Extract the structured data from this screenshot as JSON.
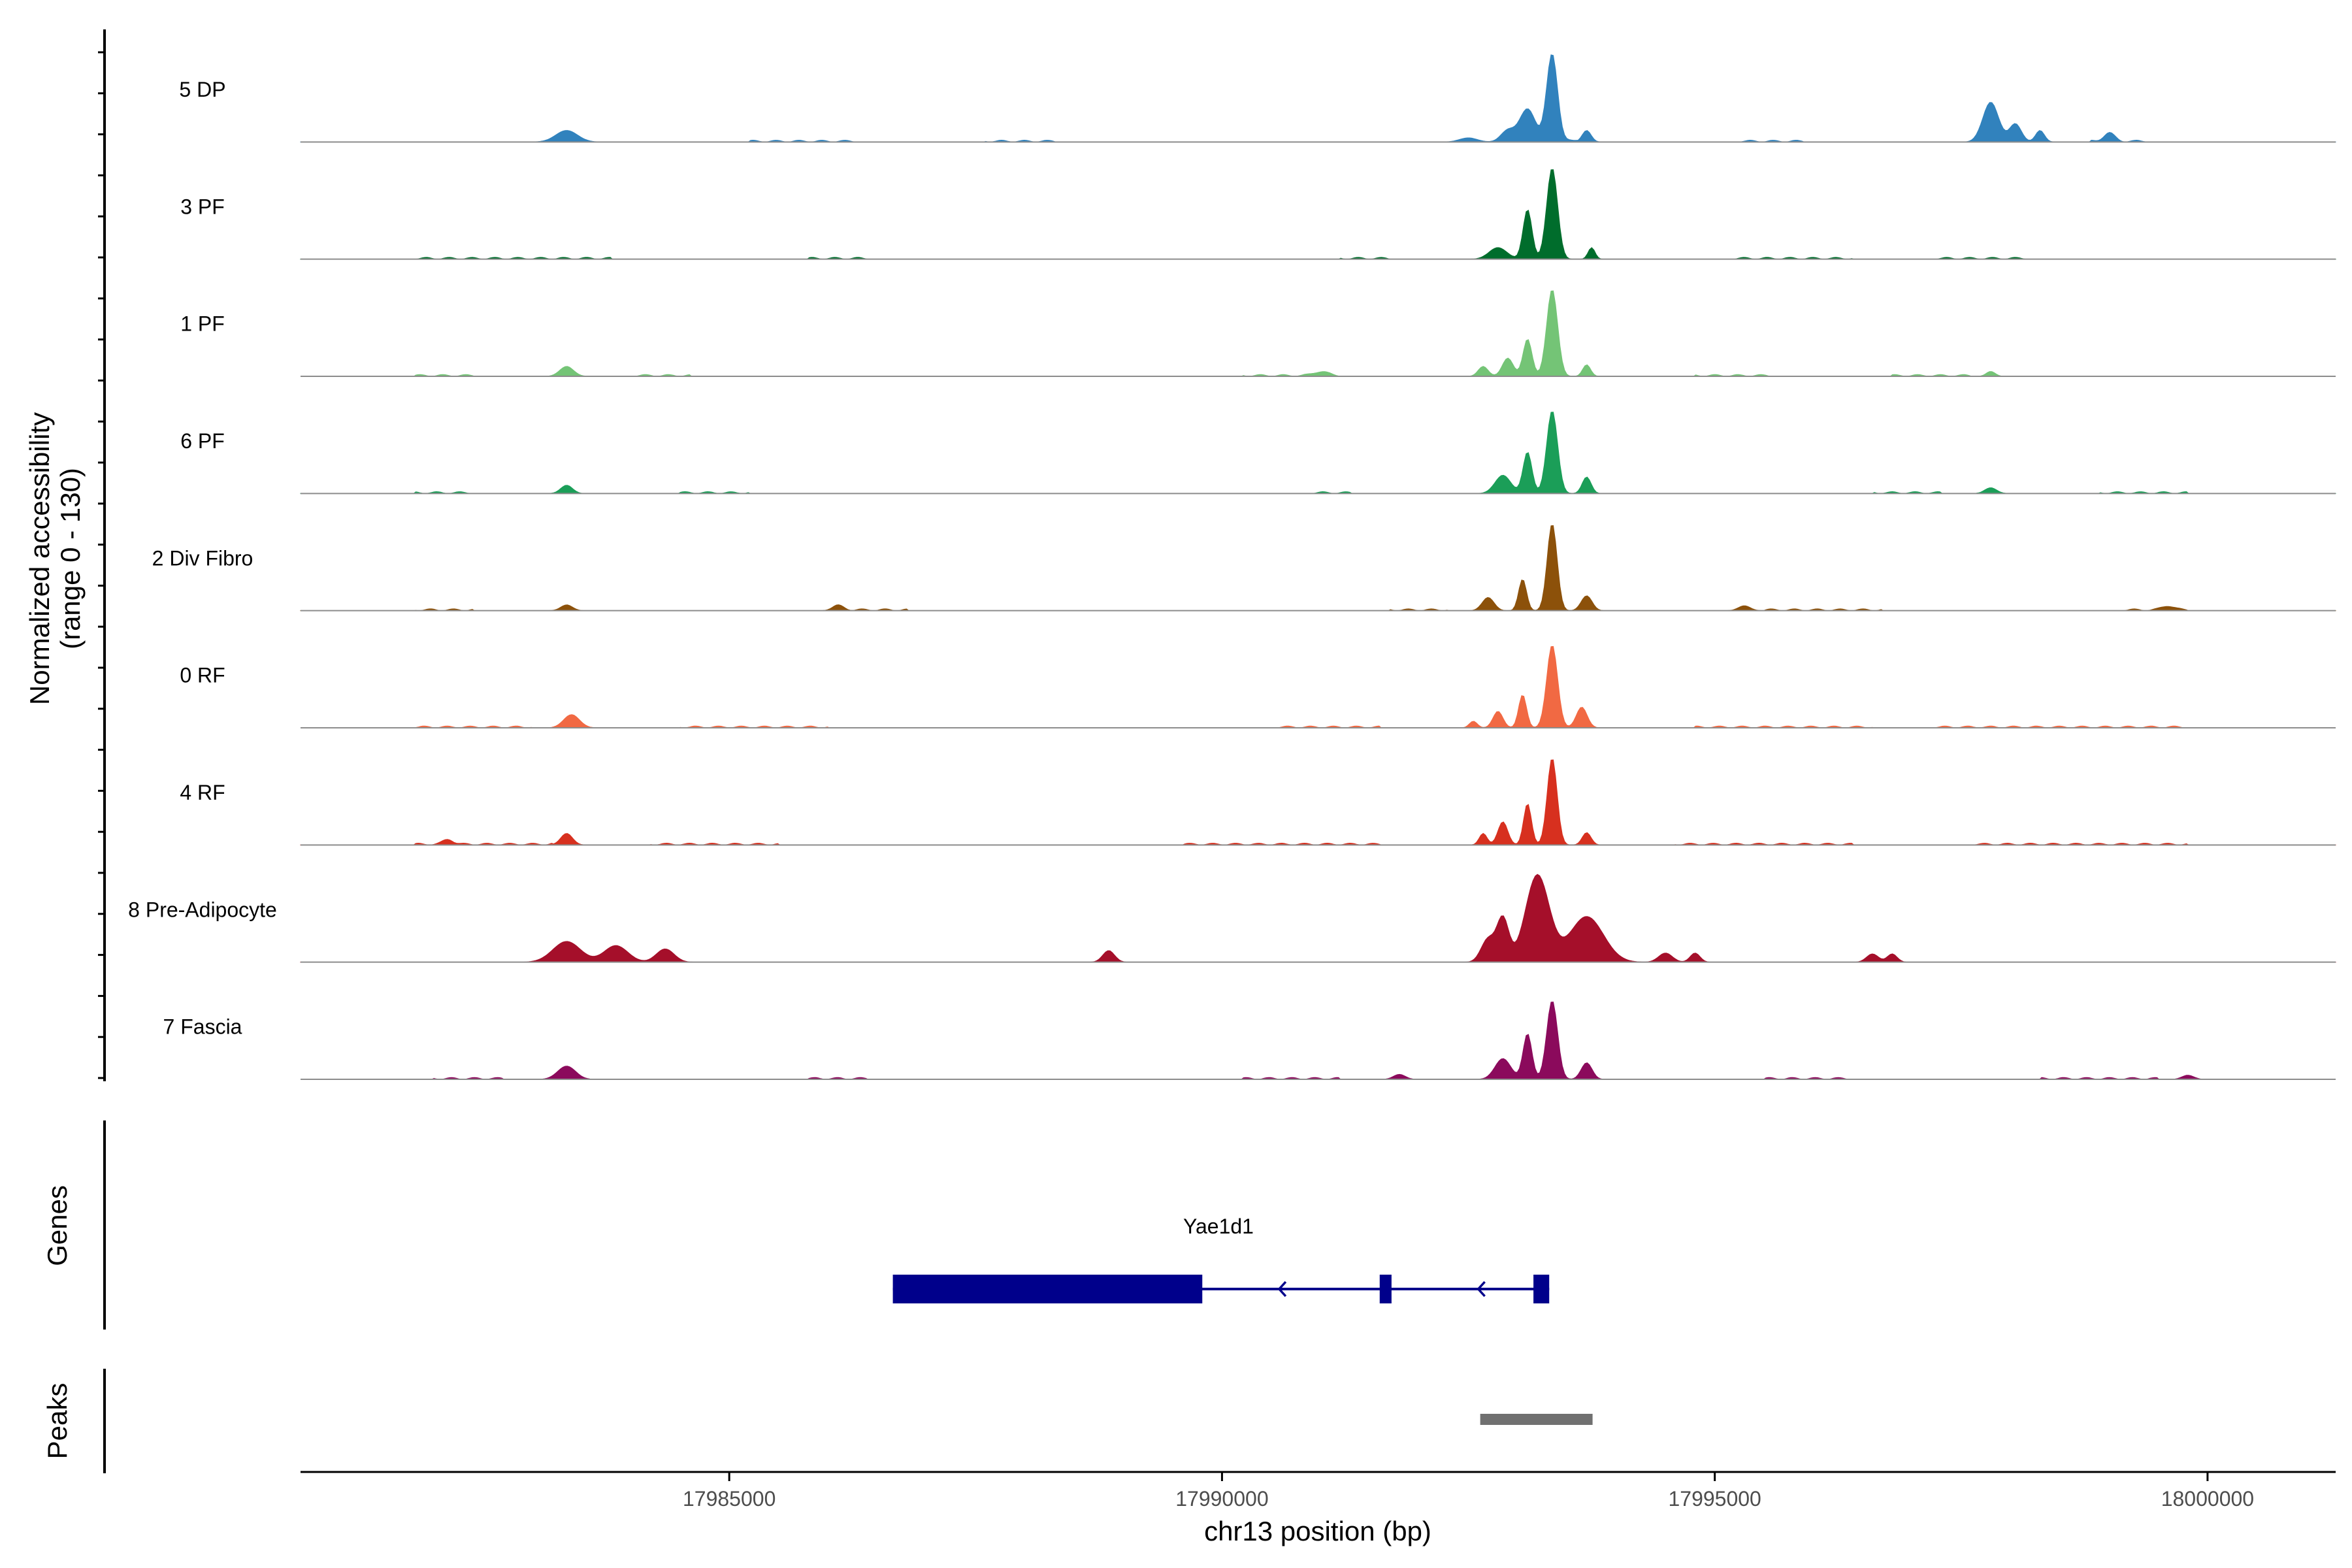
{
  "chart_data": {
    "type": "area",
    "y_axis": {
      "label_line1": "Normalized accessibility",
      "label_line2": "(range 0 - 130)",
      "ylim": [
        0,
        130
      ]
    },
    "x_axis": {
      "label": "chr13 position (bp)",
      "xlim": [
        17980650,
        18001300
      ],
      "ticks": [
        17985000,
        17990000,
        17995000,
        18000000
      ],
      "tick_labels": [
        "17985000",
        "17990000",
        "17995000",
        "18000000"
      ]
    },
    "tracks": [
      {
        "name": "5 DP",
        "color": "#3182BD",
        "noise": [
          [
            17985200,
            17986300
          ],
          [
            17987600,
            17988300
          ],
          [
            17993200,
            17993600
          ],
          [
            17995200,
            17995900
          ],
          [
            17998800,
            17999400
          ]
        ],
        "peaks": [
          [
            17983350,
            110,
            14
          ],
          [
            17993350,
            55,
            105
          ],
          [
            17993100,
            80,
            40
          ],
          [
            17992900,
            70,
            14
          ],
          [
            17993700,
            45,
            14
          ],
          [
            17997800,
            80,
            48
          ],
          [
            17998050,
            60,
            22
          ],
          [
            17998300,
            45,
            14
          ],
          [
            17999000,
            55,
            10
          ],
          [
            17992500,
            90,
            5
          ]
        ]
      },
      {
        "name": "3 PF",
        "color": "#006D2C",
        "noise": [
          [
            17981800,
            17983800
          ],
          [
            17985800,
            17986400
          ],
          [
            17991200,
            17991700
          ],
          [
            17995200,
            17996400
          ],
          [
            17997200,
            17998200
          ]
        ],
        "peaks": [
          [
            17993350,
            55,
            110
          ],
          [
            17993100,
            45,
            60
          ],
          [
            17992800,
            90,
            14
          ],
          [
            17993750,
            35,
            14
          ]
        ]
      },
      {
        "name": "1 PF",
        "color": "#74C476",
        "noise": [
          [
            17981800,
            17982400
          ],
          [
            17984000,
            17984600
          ],
          [
            17990200,
            17991200
          ],
          [
            17994800,
            17995600
          ],
          [
            17996800,
            17997600
          ]
        ],
        "peaks": [
          [
            17983350,
            70,
            12
          ],
          [
            17993350,
            55,
            105
          ],
          [
            17993100,
            45,
            45
          ],
          [
            17992900,
            55,
            22
          ],
          [
            17992650,
            50,
            12
          ],
          [
            17993700,
            40,
            14
          ],
          [
            17991000,
            70,
            5
          ],
          [
            17997800,
            45,
            6
          ]
        ]
      },
      {
        "name": "6 PF",
        "color": "#1B9E58",
        "noise": [
          [
            17981800,
            17982400
          ],
          [
            17984500,
            17985200
          ],
          [
            17990900,
            17991300
          ],
          [
            17996600,
            17997300
          ],
          [
            17998900,
            17999800
          ]
        ],
        "peaks": [
          [
            17983350,
            60,
            10
          ],
          [
            17993350,
            55,
            100
          ],
          [
            17993100,
            45,
            50
          ],
          [
            17992850,
            80,
            22
          ],
          [
            17993700,
            45,
            20
          ],
          [
            17997800,
            60,
            7
          ]
        ]
      },
      {
        "name": "2 Div Fibro",
        "color": "#8C510A",
        "noise": [
          [
            17981800,
            17982400
          ],
          [
            17986000,
            17986800
          ],
          [
            17991700,
            17992300
          ],
          [
            17995500,
            17996700
          ],
          [
            17999100,
            17999800
          ]
        ],
        "peaks": [
          [
            17993350,
            50,
            105
          ],
          [
            17993050,
            40,
            38
          ],
          [
            17992700,
            60,
            16
          ],
          [
            17993700,
            55,
            18
          ],
          [
            17983350,
            60,
            7
          ],
          [
            17986100,
            60,
            5
          ],
          [
            17995300,
            60,
            6
          ],
          [
            17999600,
            60,
            5
          ]
        ]
      },
      {
        "name": "0 RF",
        "color": "#F16943",
        "noise": [
          [
            17981800,
            17983000
          ],
          [
            17984500,
            17986000
          ],
          [
            17990500,
            17991600
          ],
          [
            17994800,
            17996600
          ],
          [
            17997200,
            17999800
          ]
        ],
        "peaks": [
          [
            17983400,
            80,
            16
          ],
          [
            17993350,
            55,
            100
          ],
          [
            17993050,
            40,
            40
          ],
          [
            17992800,
            50,
            20
          ],
          [
            17993650,
            55,
            25
          ],
          [
            17992550,
            40,
            8
          ]
        ]
      },
      {
        "name": "4 RF",
        "color": "#D7301F",
        "noise": [
          [
            17981800,
            17983200
          ],
          [
            17984200,
            17985500
          ],
          [
            17989600,
            17991600
          ],
          [
            17994600,
            17996400
          ],
          [
            17997600,
            17999800
          ]
        ],
        "peaks": [
          [
            17983350,
            60,
            14
          ],
          [
            17993350,
            50,
            105
          ],
          [
            17993100,
            40,
            50
          ],
          [
            17992850,
            50,
            28
          ],
          [
            17992650,
            40,
            14
          ],
          [
            17993700,
            45,
            15
          ],
          [
            17982150,
            50,
            6
          ]
        ]
      },
      {
        "name": "8 Pre-Adipocyte",
        "color": "#A50F2A",
        "noise": [],
        "peaks": [
          [
            17983350,
            140,
            25
          ],
          [
            17983850,
            120,
            20
          ],
          [
            17984350,
            90,
            16
          ],
          [
            17988850,
            60,
            14
          ],
          [
            17993200,
            120,
            105
          ],
          [
            17992850,
            60,
            52
          ],
          [
            17993700,
            170,
            55
          ],
          [
            17992700,
            70,
            28
          ],
          [
            17994500,
            70,
            11
          ],
          [
            17994800,
            50,
            11
          ],
          [
            17996600,
            60,
            10
          ],
          [
            17996800,
            50,
            10
          ]
        ]
      },
      {
        "name": "7 Fascia",
        "color": "#8B0A5C",
        "noise": [
          [
            17982000,
            17982700
          ],
          [
            17985800,
            17986400
          ],
          [
            17990200,
            17991200
          ],
          [
            17995500,
            17996400
          ],
          [
            17998300,
            17999500
          ]
        ],
        "peaks": [
          [
            17983350,
            90,
            16
          ],
          [
            17993350,
            55,
            95
          ],
          [
            17993100,
            45,
            55
          ],
          [
            17992850,
            80,
            25
          ],
          [
            17993700,
            55,
            20
          ],
          [
            17991800,
            60,
            6
          ],
          [
            17999800,
            60,
            5
          ]
        ]
      }
    ],
    "genes": {
      "label": "Genes",
      "gene_name": "Yae1d1",
      "color": "#00008B",
      "strand": "-",
      "span": [
        17986660,
        17993320
      ],
      "exons": [
        [
          17986660,
          17989800
        ],
        [
          17991600,
          17991720
        ],
        [
          17993160,
          17993320
        ]
      ],
      "arrow_positions": [
        17990580,
        17992600
      ]
    },
    "peaks_track": {
      "label": "Peaks",
      "color": "#707070",
      "regions": [
        [
          17992620,
          17993760
        ]
      ]
    }
  }
}
